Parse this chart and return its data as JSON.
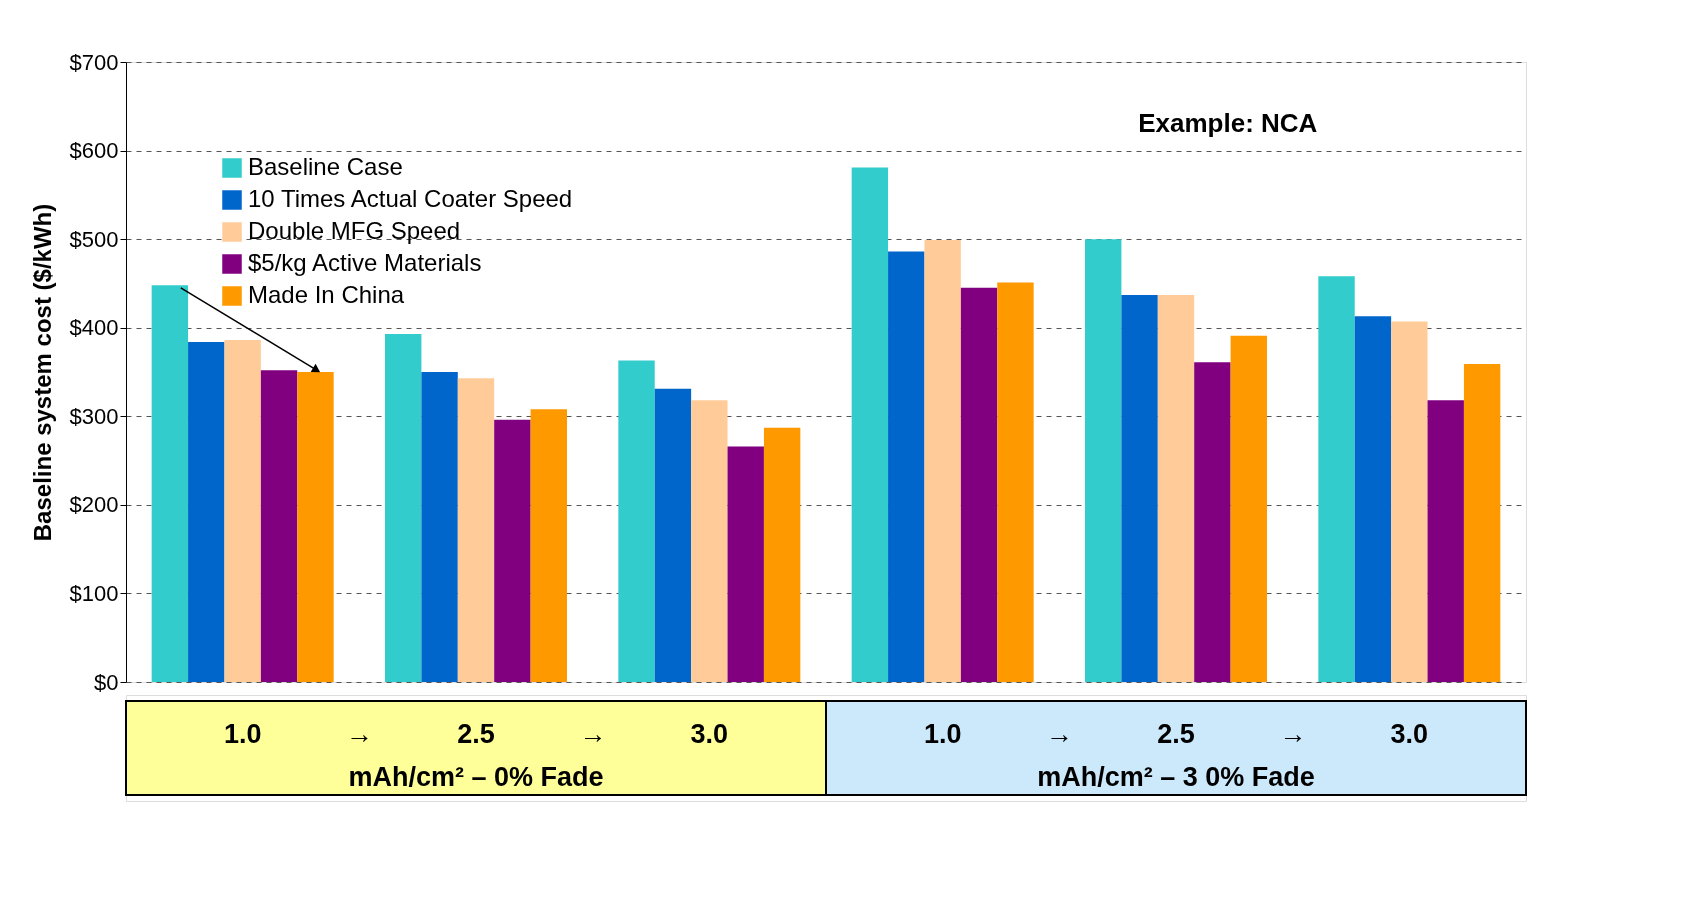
{
  "chart_data": {
    "type": "bar",
    "ylabel": "Baseline system cost ($/kWh)",
    "categories": [
      "1.0",
      "2.5",
      "3.0",
      "1.0",
      "2.5",
      "3.0"
    ],
    "series": [
      {
        "name": "Baseline Case",
        "color": "#33cccc",
        "values": [
          448,
          393,
          363,
          581,
          500,
          458
        ]
      },
      {
        "name": "10 Times Actual Coater Speed",
        "color": "#0066cc",
        "values": [
          384,
          350,
          331,
          486,
          437,
          413
        ]
      },
      {
        "name": "Double MFG Speed",
        "color": "#ffcc99",
        "values": [
          386,
          343,
          318,
          499,
          437,
          407
        ]
      },
      {
        "name": "$5/kg Active Materials",
        "color": "#800080",
        "values": [
          352,
          296,
          266,
          445,
          361,
          318
        ]
      },
      {
        "name": "Made In China",
        "color": "#ff9900",
        "values": [
          350,
          308,
          287,
          451,
          391,
          359
        ]
      }
    ],
    "ylim": [
      0,
      700
    ],
    "yticks": [
      {
        "value": 0,
        "label": "$0"
      },
      {
        "value": 100,
        "label": "$100"
      },
      {
        "value": 200,
        "label": "$200"
      },
      {
        "value": 300,
        "label": "$300"
      },
      {
        "value": 400,
        "label": "$400"
      },
      {
        "value": 500,
        "label": "$500"
      },
      {
        "value": 600,
        "label": "$600"
      },
      {
        "value": 700,
        "label": "$700"
      }
    ],
    "grid": "y",
    "legend": "top left",
    "annotations": [
      "Example: NCA",
      "mAh/cm² – 0% Fade",
      "mAh/cm² – 3 0% Fade",
      "→",
      "→",
      "→",
      "→"
    ]
  }
}
